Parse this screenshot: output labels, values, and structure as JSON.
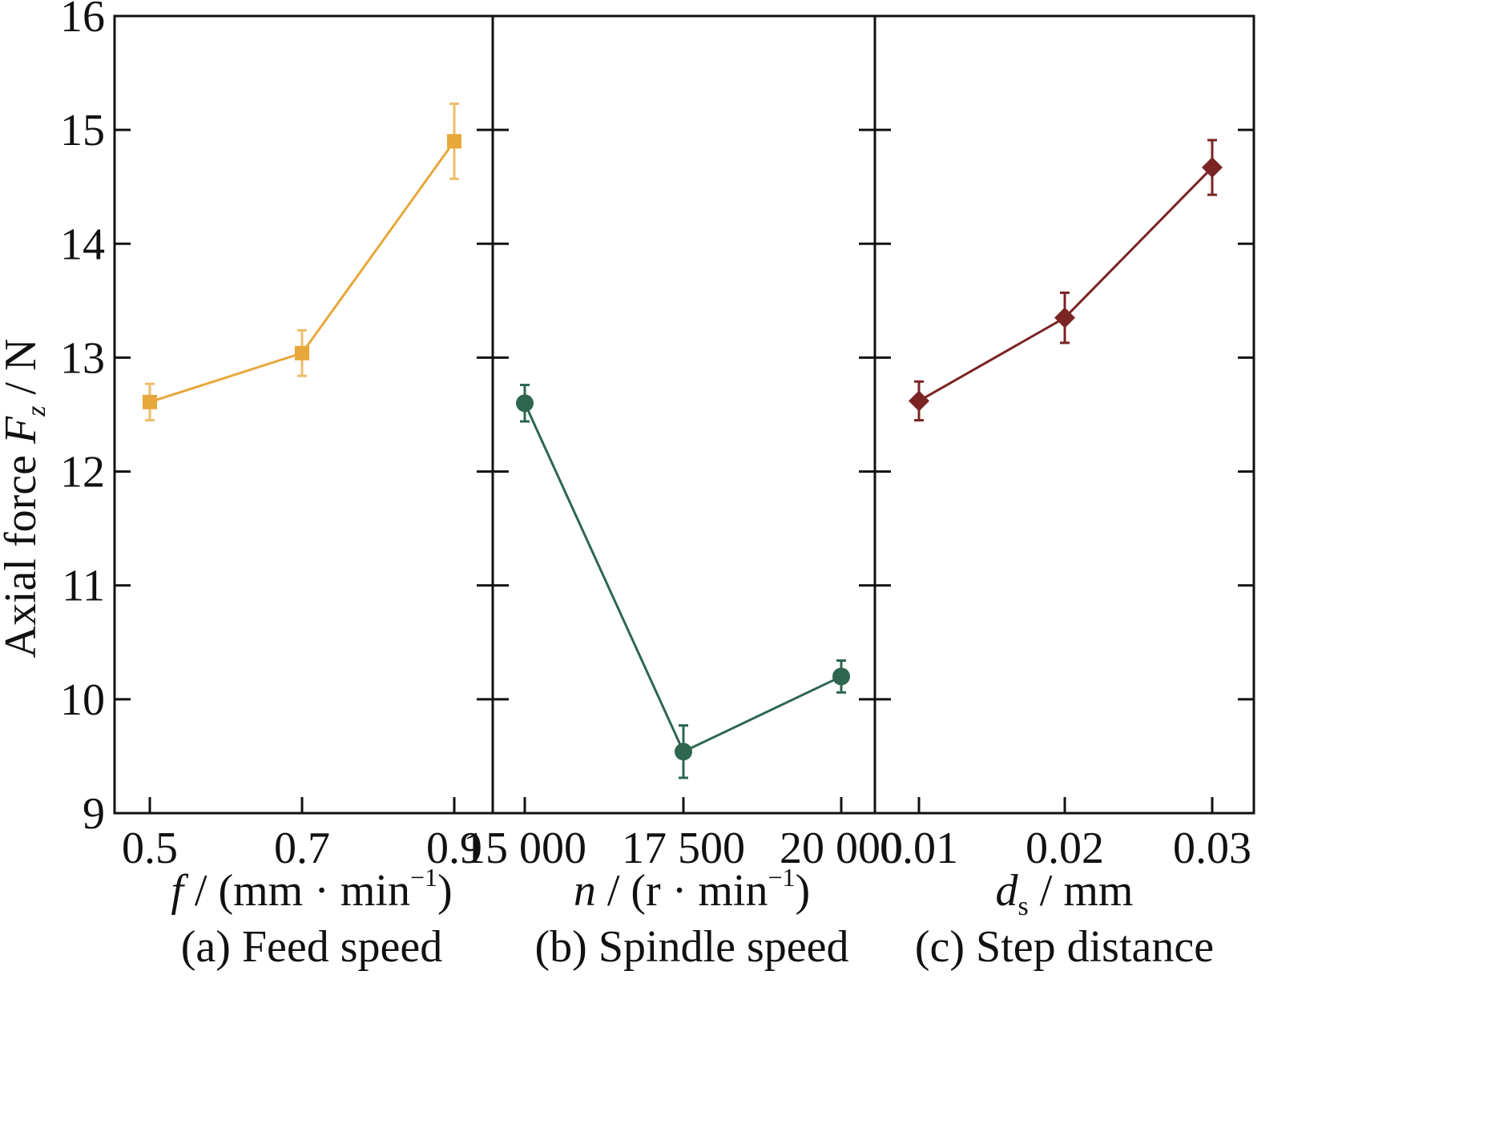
{
  "chart_data": [
    {
      "type": "line",
      "caption": "(a) Feed speed",
      "xlabel": "f / (mm · min⁻¹)",
      "xlabel_parts": {
        "var": "f",
        "sep": "/",
        "unit": "(mm · min",
        "sup": "−1",
        "close": ")"
      },
      "ylabel": "Axial force Fz / N",
      "categories": [
        "0.5",
        "0.7",
        "0.9"
      ],
      "x": [
        0.5,
        0.7,
        0.9
      ],
      "series": [
        {
          "values": [
            12.61,
            13.04,
            14.9
          ],
          "errors": [
            0.16,
            0.2,
            0.33
          ],
          "marker": "square",
          "color": "#E8A73A"
        }
      ],
      "ylim": [
        9,
        16
      ],
      "yticks": [
        9,
        10,
        11,
        12,
        13,
        14,
        15,
        16
      ]
    },
    {
      "type": "line",
      "caption": "(b) Spindle speed",
      "xlabel": "n / (r · min⁻¹)",
      "xlabel_parts": {
        "var": "n",
        "sep": "/",
        "unit": "(r · min",
        "sup": "−1",
        "close": ")"
      },
      "categories": [
        "15 000",
        "17 500",
        "20 000"
      ],
      "x": [
        15000,
        17500,
        20000
      ],
      "series": [
        {
          "values": [
            12.6,
            9.54,
            10.2
          ],
          "errors": [
            0.16,
            0.23,
            0.14
          ],
          "marker": "circle",
          "color": "#2E6650"
        }
      ],
      "ylim": [
        9,
        16
      ]
    },
    {
      "type": "line",
      "caption": "(c) Step distance",
      "xlabel": "ds / mm",
      "xlabel_parts": {
        "var": "d",
        "sub": "s",
        "sep": "/",
        "unit": "mm"
      },
      "categories": [
        "0.01",
        "0.02",
        "0.03"
      ],
      "x": [
        0.01,
        0.02,
        0.03
      ],
      "series": [
        {
          "values": [
            12.62,
            13.35,
            14.67
          ],
          "errors": [
            0.17,
            0.22,
            0.24
          ],
          "marker": "diamond",
          "color": "#7A2424"
        }
      ],
      "ylim": [
        9,
        16
      ]
    }
  ],
  "y_axis_title": {
    "main": "Axial force ",
    "var": "F",
    "sub": "z",
    "unit": " / N"
  }
}
